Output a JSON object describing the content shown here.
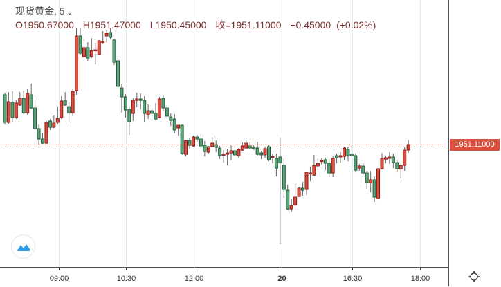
{
  "header": {
    "symbol": "现货黄金",
    "interval": ", 5",
    "open": "O1950.67000",
    "high": "H1951.47000",
    "low": "L1950.45000",
    "close": "收=1951.11000",
    "change": "+0.45000",
    "change_pct": "(+0.02%)"
  },
  "last_price_label": "1951.11000",
  "icons": {
    "interval_menu": "chevron-down-icon",
    "logo": "chart-logo-icon",
    "settings": "gear-icon"
  },
  "colors": {
    "up": "#d9503f",
    "up_border": "#8b1a1a",
    "down": "#5fa37a",
    "down_border": "#1e5e3a",
    "last_price_line": "#d9503f",
    "grid": "#e1ecf2"
  },
  "chart_data": {
    "type": "candlestick",
    "interval_minutes": 5,
    "ylim": [
      1941.28,
      1962.72
    ],
    "grid": "vertical",
    "x_tick_labels": [
      "09:00",
      "10:30",
      "12:00",
      "20",
      "16:30",
      "18:00"
    ],
    "last_price": 1951.11,
    "ohlc": [
      [
        1955.11,
        1955.28,
        1952.72,
        1952.89
      ],
      [
        1952.89,
        1955.33,
        1952.78,
        1954.55
      ],
      [
        1954.5,
        1955.39,
        1952.94,
        1953.28
      ],
      [
        1953.28,
        1954.66,
        1953.16,
        1954.44
      ],
      [
        1954.28,
        1955.33,
        1954.22,
        1954.83
      ],
      [
        1954.83,
        1955.44,
        1953.55,
        1953.66
      ],
      [
        1953.66,
        1955.61,
        1953.5,
        1955.22
      ],
      [
        1955.11,
        1956.0,
        1953.94,
        1954.05
      ],
      [
        1954.05,
        1954.83,
        1952.28,
        1952.39
      ],
      [
        1952.39,
        1952.72,
        1951.11,
        1951.55
      ],
      [
        1951.55,
        1952.05,
        1951.16,
        1951.22
      ],
      [
        1951.22,
        1953.0,
        1951.16,
        1952.89
      ],
      [
        1953.0,
        1953.16,
        1952.28,
        1952.5
      ],
      [
        1952.5,
        1953.44,
        1952.44,
        1952.83
      ],
      [
        1952.89,
        1954.16,
        1952.72,
        1953.22
      ],
      [
        1953.28,
        1955.0,
        1953.16,
        1954.61
      ],
      [
        1954.66,
        1955.33,
        1954.22,
        1954.28
      ],
      [
        1954.16,
        1954.5,
        1952.83,
        1953.66
      ],
      [
        1953.66,
        1955.61,
        1953.39,
        1955.39
      ],
      [
        1955.44,
        1960.5,
        1955.11,
        1959.83
      ],
      [
        1959.83,
        1960.5,
        1958.33,
        1958.44
      ],
      [
        1958.16,
        1959.55,
        1958.16,
        1958.89
      ],
      [
        1958.89,
        1959.33,
        1957.83,
        1958.05
      ],
      [
        1958.16,
        1959.66,
        1958.05,
        1958.66
      ],
      [
        1958.66,
        1959.28,
        1957.55,
        1958.72
      ],
      [
        1958.33,
        1959.5,
        1958.28,
        1959.44
      ],
      [
        1959.33,
        1960.22,
        1959.16,
        1959.39
      ],
      [
        1959.83,
        1960.33,
        1959.28,
        1960.05
      ],
      [
        1960.11,
        1960.5,
        1959.55,
        1959.72
      ],
      [
        1959.5,
        1959.61,
        1957.5,
        1957.72
      ],
      [
        1957.83,
        1958.05,
        1954.94,
        1955.78
      ],
      [
        1955.66,
        1956.0,
        1953.66,
        1954.94
      ],
      [
        1954.94,
        1955.16,
        1953.28,
        1953.89
      ],
      [
        1953.94,
        1954.16,
        1951.89,
        1952.94
      ],
      [
        1953.61,
        1954.83,
        1953.0,
        1954.66
      ],
      [
        1954.66,
        1955.28,
        1954.11,
        1954.78
      ],
      [
        1954.78,
        1955.22,
        1953.94,
        1954.66
      ],
      [
        1954.66,
        1955.0,
        1952.94,
        1953.61
      ],
      [
        1953.5,
        1954.33,
        1953.16,
        1953.83
      ],
      [
        1953.83,
        1954.05,
        1953.28,
        1953.61
      ],
      [
        1953.61,
        1954.44,
        1953.05,
        1953.16
      ],
      [
        1953.28,
        1954.94,
        1953.22,
        1954.78
      ],
      [
        1954.83,
        1955.05,
        1953.78,
        1954.05
      ],
      [
        1954.05,
        1954.28,
        1953.16,
        1953.39
      ],
      [
        1953.33,
        1953.61,
        1952.61,
        1953.05
      ],
      [
        1953.16,
        1953.55,
        1952.0,
        1952.28
      ],
      [
        1952.44,
        1952.66,
        1951.83,
        1952.66
      ],
      [
        1952.66,
        1952.72,
        1950.28,
        1950.39
      ],
      [
        1950.33,
        1951.5,
        1950.16,
        1951.44
      ],
      [
        1951.44,
        1951.66,
        1950.72,
        1951.05
      ],
      [
        1951.0,
        1951.83,
        1950.94,
        1951.72
      ],
      [
        1951.72,
        1951.89,
        1951.33,
        1951.55
      ],
      [
        1951.55,
        1951.94,
        1950.72,
        1951.0
      ],
      [
        1951.05,
        1951.39,
        1950.16,
        1950.55
      ],
      [
        1950.5,
        1951.0,
        1950.39,
        1950.94
      ],
      [
        1950.94,
        1951.72,
        1950.94,
        1951.22
      ],
      [
        1951.11,
        1951.44,
        1950.5,
        1950.89
      ],
      [
        1950.83,
        1951.0,
        1949.94,
        1950.22
      ],
      [
        1950.28,
        1950.66,
        1949.66,
        1950.33
      ],
      [
        1950.33,
        1950.78,
        1949.44,
        1950.44
      ],
      [
        1950.44,
        1951.05,
        1949.83,
        1950.61
      ],
      [
        1950.61,
        1950.78,
        1950.16,
        1950.28
      ],
      [
        1950.22,
        1950.83,
        1950.05,
        1950.72
      ],
      [
        1950.66,
        1951.28,
        1950.61,
        1951.0
      ],
      [
        1950.83,
        1951.44,
        1950.78,
        1951.22
      ],
      [
        1951.0,
        1951.33,
        1950.72,
        1950.83
      ],
      [
        1950.89,
        1951.05,
        1950.66,
        1950.78
      ],
      [
        1950.83,
        1951.33,
        1950.22,
        1950.33
      ],
      [
        1950.44,
        1950.61,
        1949.94,
        1950.28
      ],
      [
        1950.28,
        1950.94,
        1950.05,
        1950.78
      ],
      [
        1950.94,
        1951.11,
        1949.78,
        1949.89
      ],
      [
        1950.11,
        1950.39,
        1949.61,
        1950.16
      ],
      [
        1950.0,
        1950.39,
        1948.55,
        1949.22
      ],
      [
        1950.11,
        1951.66,
        1943.11,
        1949.66
      ],
      [
        1949.44,
        1950.0,
        1946.83,
        1947.5
      ],
      [
        1947.44,
        1947.89,
        1945.83,
        1945.94
      ],
      [
        1945.94,
        1946.72,
        1945.72,
        1946.22
      ],
      [
        1946.28,
        1948.0,
        1946.16,
        1946.89
      ],
      [
        1946.94,
        1947.72,
        1946.94,
        1947.61
      ],
      [
        1947.61,
        1948.11,
        1947.0,
        1947.44
      ],
      [
        1947.5,
        1948.94,
        1947.05,
        1948.89
      ],
      [
        1948.78,
        1949.33,
        1948.16,
        1948.83
      ],
      [
        1948.66,
        1950.28,
        1948.61,
        1949.44
      ],
      [
        1949.39,
        1950.0,
        1949.05,
        1949.61
      ],
      [
        1949.77,
        1950.0,
        1949.5,
        1949.83
      ],
      [
        1949.89,
        1950.05,
        1949.05,
        1949.61
      ],
      [
        1949.61,
        1949.94,
        1948.5,
        1948.83
      ],
      [
        1948.83,
        1950.16,
        1948.5,
        1950.0
      ],
      [
        1950.22,
        1950.39,
        1949.61,
        1950.05
      ],
      [
        1950.11,
        1950.5,
        1949.66,
        1950.22
      ],
      [
        1950.16,
        1950.94,
        1949.83,
        1950.83
      ],
      [
        1950.72,
        1950.94,
        1949.77,
        1950.22
      ],
      [
        1950.33,
        1951.11,
        1950.16,
        1950.22
      ],
      [
        1950.22,
        1950.39,
        1948.94,
        1949.05
      ],
      [
        1949.22,
        1949.55,
        1949.0,
        1949.39
      ],
      [
        1949.39,
        1949.61,
        1948.66,
        1948.83
      ],
      [
        1948.83,
        1949.0,
        1947.55,
        1948.05
      ],
      [
        1948.05,
        1949.0,
        1947.27,
        1948.28
      ],
      [
        1948.28,
        1948.55,
        1946.5,
        1946.89
      ],
      [
        1946.77,
        1949.22,
        1946.72,
        1949.16
      ],
      [
        1949.16,
        1950.44,
        1949.11,
        1950.0
      ],
      [
        1949.94,
        1950.22,
        1949.61,
        1950.05
      ],
      [
        1950.0,
        1950.5,
        1949.55,
        1950.11
      ],
      [
        1950.11,
        1950.39,
        1949.22,
        1949.66
      ],
      [
        1949.66,
        1949.94,
        1948.94,
        1949.16
      ],
      [
        1949.16,
        1949.61,
        1948.38,
        1949.44
      ],
      [
        1949.44,
        1950.94,
        1949.0,
        1950.66
      ],
      [
        1950.67,
        1951.47,
        1950.45,
        1951.11
      ]
    ]
  }
}
